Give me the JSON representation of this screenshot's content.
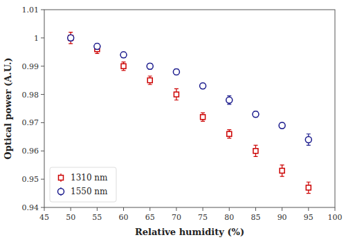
{
  "chart_data": {
    "type": "scatter",
    "xlabel": "Relative humidity (%)",
    "ylabel": "Optical power (A.U.)",
    "x": [
      50,
      55,
      60,
      65,
      70,
      75,
      80,
      85,
      90,
      95
    ],
    "series": [
      {
        "name": "1310 nm",
        "color": "#cc0000",
        "marker": "square",
        "values": [
          1.0,
          0.996,
          0.99,
          0.985,
          0.98,
          0.972,
          0.966,
          0.96,
          0.953,
          0.947
        ],
        "errors": [
          0.002,
          0.0015,
          0.0015,
          0.0015,
          0.002,
          0.0015,
          0.0015,
          0.002,
          0.002,
          0.002
        ]
      },
      {
        "name": "1550 nm",
        "color": "#1a1a8c",
        "marker": "circle",
        "values": [
          1.0,
          0.997,
          0.994,
          0.99,
          0.988,
          0.983,
          0.978,
          0.973,
          0.969,
          0.964
        ],
        "errors": [
          0.001,
          0.001,
          0.001,
          0.001,
          0.001,
          0.001,
          0.0015,
          0.001,
          0.001,
          0.002
        ]
      }
    ],
    "xlim": [
      45,
      100
    ],
    "ylim": [
      0.94,
      1.01
    ],
    "xticks": [
      45,
      50,
      55,
      60,
      65,
      70,
      75,
      80,
      85,
      90,
      95,
      100
    ],
    "yticks": [
      0.94,
      0.95,
      0.96,
      0.97,
      0.98,
      0.99,
      1,
      1.01
    ],
    "grid": false,
    "legend": "lower left"
  }
}
